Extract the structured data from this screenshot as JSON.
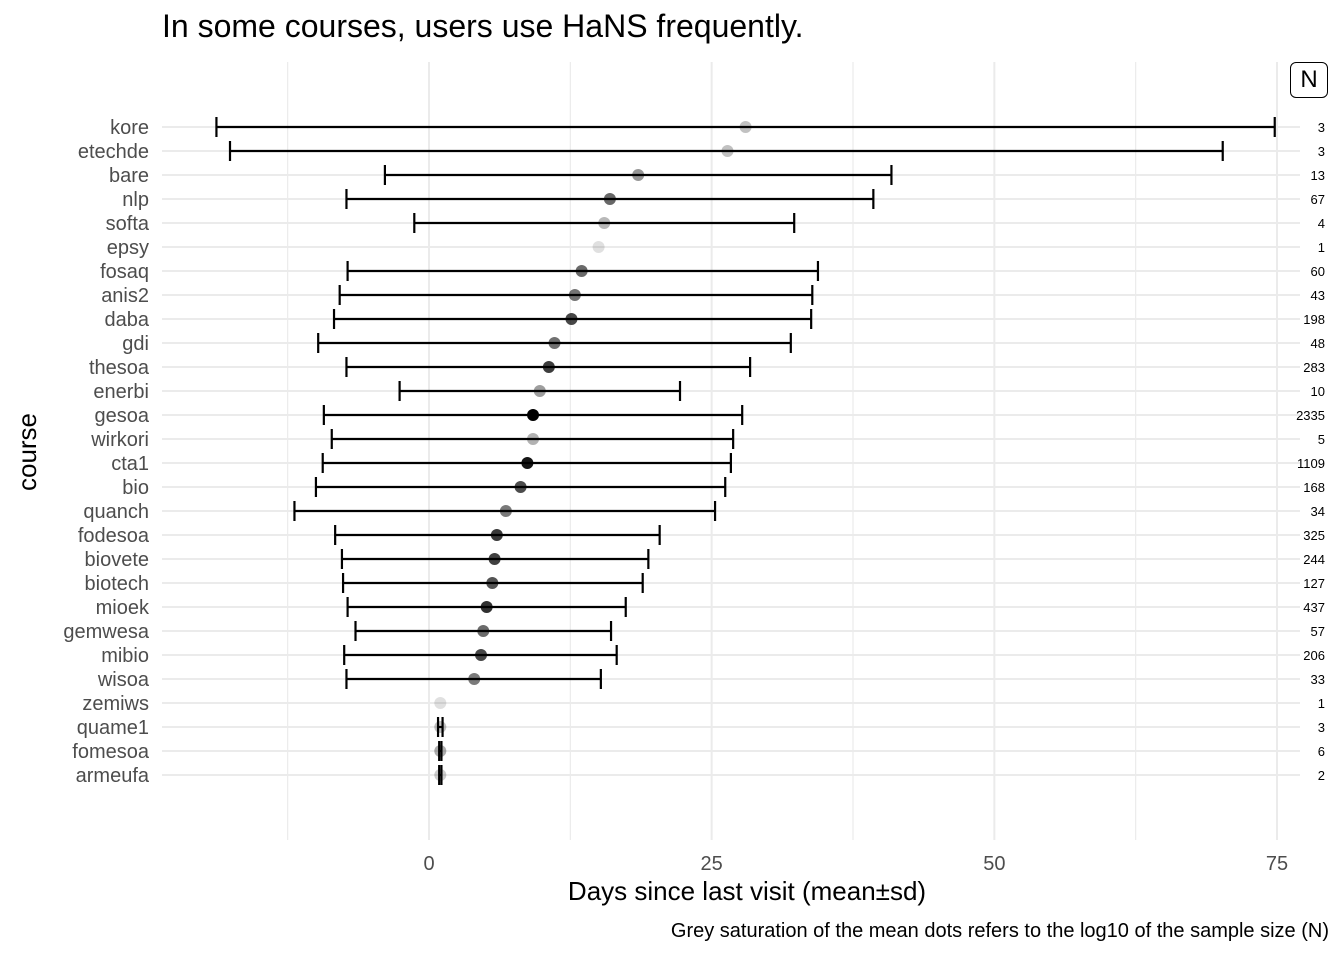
{
  "chart_data": {
    "type": "scatter",
    "title": "In some courses, users use HaNS frequently.",
    "xlabel": "Days since last visit (mean±sd)",
    "ylabel": "course",
    "caption": "Grey saturation of the mean dots refers to the log10 of the sample size (N)",
    "legend_label": "N",
    "xlim": [
      -24,
      77
    ],
    "x_ticks": [
      0,
      25,
      50,
      75
    ],
    "grid": true,
    "courses": [
      {
        "name": "kore",
        "mean": 28.0,
        "lo": -18.8,
        "hi": 74.8,
        "n": "3"
      },
      {
        "name": "etechde",
        "mean": 26.4,
        "lo": -17.6,
        "hi": 70.2,
        "n": "3"
      },
      {
        "name": "bare",
        "mean": 18.5,
        "lo": -3.9,
        "hi": 40.9,
        "n": "13"
      },
      {
        "name": "nlp",
        "mean": 16.0,
        "lo": -7.3,
        "hi": 39.3,
        "n": "67"
      },
      {
        "name": "softa",
        "mean": 15.5,
        "lo": -1.3,
        "hi": 32.3,
        "n": "4"
      },
      {
        "name": "epsy",
        "mean": 15.0,
        "lo": 15.0,
        "hi": 15.0,
        "n": "1"
      },
      {
        "name": "fosaq",
        "mean": 13.5,
        "lo": -7.2,
        "hi": 34.4,
        "n": "60"
      },
      {
        "name": "anis2",
        "mean": 12.9,
        "lo": -7.9,
        "hi": 33.9,
        "n": "43"
      },
      {
        "name": "daba",
        "mean": 12.6,
        "lo": -8.4,
        "hi": 33.8,
        "n": "198"
      },
      {
        "name": "gdi",
        "mean": 11.1,
        "lo": -9.8,
        "hi": 32.0,
        "n": "48"
      },
      {
        "name": "thesoa",
        "mean": 10.6,
        "lo": -7.3,
        "hi": 28.4,
        "n": "283"
      },
      {
        "name": "enerbi",
        "mean": 9.8,
        "lo": -2.6,
        "hi": 22.2,
        "n": "10"
      },
      {
        "name": "gesoa",
        "mean": 9.2,
        "lo": -9.3,
        "hi": 27.7,
        "n": "2335"
      },
      {
        "name": "wirkori",
        "mean": 9.2,
        "lo": -8.6,
        "hi": 26.9,
        "n": "5"
      },
      {
        "name": "cta1",
        "mean": 8.7,
        "lo": -9.4,
        "hi": 26.7,
        "n": "1109"
      },
      {
        "name": "bio",
        "mean": 8.1,
        "lo": -10.0,
        "hi": 26.2,
        "n": "168"
      },
      {
        "name": "quanch",
        "mean": 6.8,
        "lo": -11.9,
        "hi": 25.3,
        "n": "34"
      },
      {
        "name": "fodesoa",
        "mean": 6.0,
        "lo": -8.3,
        "hi": 20.4,
        "n": "325"
      },
      {
        "name": "biovete",
        "mean": 5.8,
        "lo": -7.7,
        "hi": 19.4,
        "n": "244"
      },
      {
        "name": "biotech",
        "mean": 5.6,
        "lo": -7.6,
        "hi": 18.9,
        "n": "127"
      },
      {
        "name": "mioek",
        "mean": 5.1,
        "lo": -7.2,
        "hi": 17.4,
        "n": "437"
      },
      {
        "name": "gemwesa",
        "mean": 4.8,
        "lo": -6.5,
        "hi": 16.1,
        "n": "57"
      },
      {
        "name": "mibio",
        "mean": 4.6,
        "lo": -7.5,
        "hi": 16.6,
        "n": "206"
      },
      {
        "name": "wisoa",
        "mean": 4.0,
        "lo": -7.3,
        "hi": 15.2,
        "n": "33"
      },
      {
        "name": "zemiws",
        "mean": 1.0,
        "lo": 1.0,
        "hi": 1.0,
        "n": "1"
      },
      {
        "name": "quame1",
        "mean": 1.0,
        "lo": 0.8,
        "hi": 1.2,
        "n": "3"
      },
      {
        "name": "fomesoa",
        "mean": 1.0,
        "lo": 0.9,
        "hi": 1.1,
        "n": "6"
      },
      {
        "name": "armeufa",
        "mean": 1.0,
        "lo": 0.9,
        "hi": 1.1,
        "n": "2"
      }
    ]
  }
}
